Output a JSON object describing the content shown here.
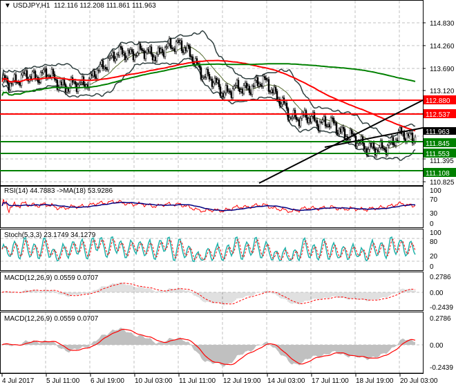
{
  "header": {
    "symbol": "USDJPY,H1",
    "ohlc": "112.116 112.208 111.861 111.963"
  },
  "colors": {
    "up": "#000000",
    "down": "#000000",
    "ma_fast": "#ff0000",
    "ma_slow": "#008000",
    "bands": "#2f3f3f",
    "res_line": "#ff0000",
    "sup_line": "#008000",
    "rsi": "#ff0000",
    "rsi_ma": "#000080",
    "stoch_main": "#20b2aa",
    "stoch_signal": "#ff0000",
    "macd_hist": "#c0c0c0",
    "macd_signal": "#ff0000",
    "grid": "#c0c0c0"
  },
  "chart_data": [
    {
      "type": "candlestick",
      "title": "USDJPY,H1",
      "y_ticks": [
        "114.830",
        "114.260",
        "113.690",
        "113.120",
        "111.395",
        "110.825"
      ],
      "ylim": [
        110.825,
        115.2
      ],
      "close_path": [
        {
          "t": "4 Jul 2017 00:00",
          "y": 113.3
        },
        {
          "t": "4 Jul 16:00",
          "y": 113.45
        },
        {
          "t": "5 Jul 11:00",
          "y": 113.55
        },
        {
          "t": "6 Jul 03:00",
          "y": 113.2
        },
        {
          "t": "6 Jul 19:00",
          "y": 113.4
        },
        {
          "t": "7 Jul 11:00",
          "y": 114.0
        },
        {
          "t": "10 Jul 03:00",
          "y": 114.1
        },
        {
          "t": "10 Jul 19:00",
          "y": 114.05
        },
        {
          "t": "11 Jul 11:00",
          "y": 114.35
        },
        {
          "t": "12 Jul 03:00",
          "y": 113.6
        },
        {
          "t": "12 Jul 19:00",
          "y": 113.1
        },
        {
          "t": "13 Jul 11:00",
          "y": 113.2
        },
        {
          "t": "14 Jul 03:00",
          "y": 113.35
        },
        {
          "t": "14 Jul 19:00",
          "y": 112.5
        },
        {
          "t": "17 Jul 11:00",
          "y": 112.4
        },
        {
          "t": "18 Jul 03:00",
          "y": 112.25
        },
        {
          "t": "18 Jul 19:00",
          "y": 111.85
        },
        {
          "t": "19 Jul 11:00",
          "y": 111.6
        },
        {
          "t": "20 Jul 03:00",
          "y": 112.0
        },
        {
          "t": "20 Jul 13:00",
          "y": 111.963
        }
      ],
      "levels": [
        {
          "label": "112.880",
          "value": 112.88,
          "kind": "resistance"
        },
        {
          "label": "112.537",
          "value": 112.537,
          "kind": "resistance"
        },
        {
          "label": "111.845",
          "value": 111.845,
          "kind": "support"
        },
        {
          "label": "111.553",
          "value": 111.553,
          "kind": "support"
        },
        {
          "label": "111.108",
          "value": 111.108,
          "kind": "support"
        }
      ],
      "current_price": "111.963",
      "trendlines": [
        {
          "from": {
            "t": "14 Jul 00:00",
            "y": 110.8
          },
          "to": {
            "t": "20 Jul 16:00",
            "y": 112.9
          }
        },
        {
          "from": {
            "t": "18 Jul 00:00",
            "y": 111.8
          },
          "to": {
            "t": "20 Jul 16:00",
            "y": 112.25
          }
        }
      ]
    },
    {
      "type": "line",
      "title": "RSI(14) 44.7883  ->MA(18) 53.9286",
      "y_ticks": [
        "100",
        "70",
        "30",
        "0"
      ],
      "ylim": [
        0,
        100
      ]
    },
    {
      "type": "line",
      "title": "Stoch(5,3,3) 23.1749 34.1279",
      "y_ticks": [
        "100",
        "80",
        "20",
        "0"
      ],
      "ylim": [
        0,
        100
      ]
    },
    {
      "type": "bar",
      "title": "MACD(12,26,9) 0.0559 0.0707",
      "y_ticks": [
        "0.2786",
        "0.00",
        "-0.2439"
      ],
      "ylim": [
        -0.2439,
        0.2786
      ]
    },
    {
      "type": "area",
      "title": "MACD(12,26,9) 0.0559 0.0707",
      "y_ticks": [
        "0.2786",
        "0.00",
        "-0.2439"
      ],
      "ylim": [
        -0.2439,
        0.2786
      ]
    }
  ],
  "x_ticks": [
    "4 Jul 2017",
    "5 Jul 11:00",
    "6 Jul 19:00",
    "10 Jul 03:00",
    "11 Jul 11:00",
    "12 Jul 19:00",
    "14 Jul 03:00",
    "17 Jul 11:00",
    "18 Jul 19:00",
    "20 Jul 03:00"
  ]
}
